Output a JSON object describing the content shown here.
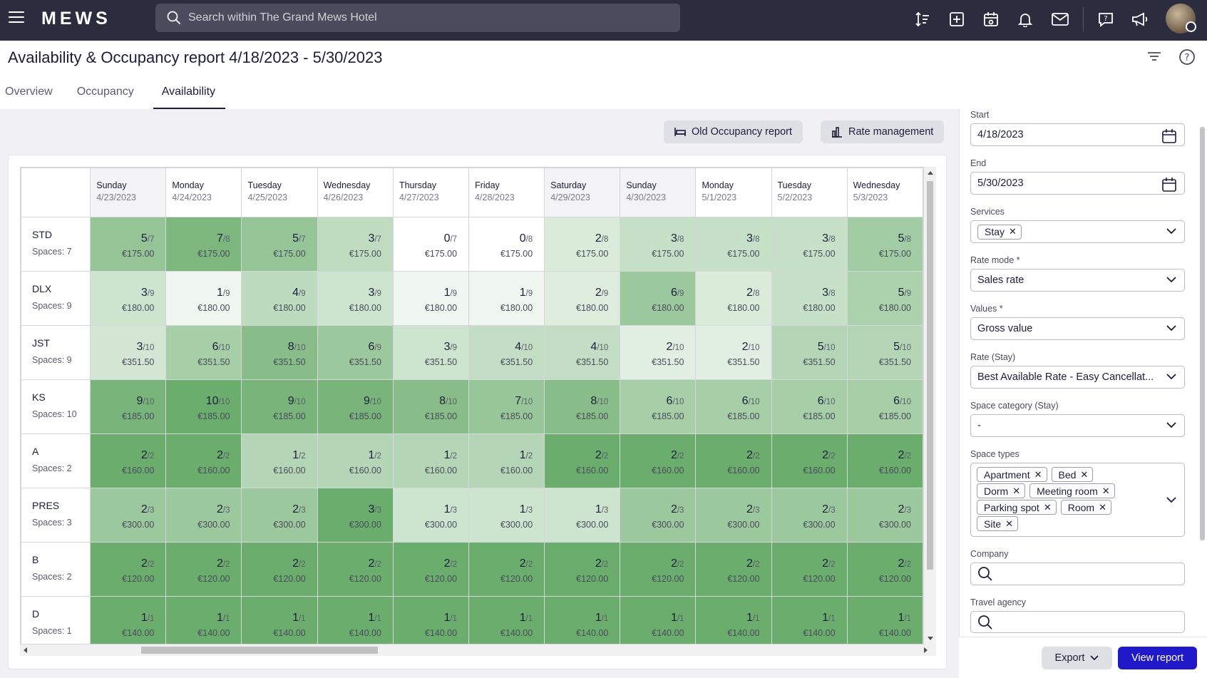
{
  "header": {
    "logo": "MEWS",
    "search_placeholder": "Search within The Grand Mews Hotel",
    "icons": [
      "sort-icon",
      "add-icon",
      "calendar-icon",
      "bell-icon",
      "mail-icon",
      "help-chat-icon",
      "megaphone-icon"
    ]
  },
  "page": {
    "title": "Availability & Occupancy report 4/18/2023 - 5/30/2023",
    "tabs": [
      "Overview",
      "Occupancy",
      "Availability"
    ],
    "active_tab": "Availability"
  },
  "actions": {
    "old_report": "Old Occupancy report",
    "rate_management": "Rate management"
  },
  "grid": {
    "columns": [
      {
        "day": "Sunday",
        "date": "4/23/2023",
        "weekend": true
      },
      {
        "day": "Monday",
        "date": "4/24/2023",
        "weekend": false
      },
      {
        "day": "Tuesday",
        "date": "4/25/2023",
        "weekend": false
      },
      {
        "day": "Wednesday",
        "date": "4/26/2023",
        "weekend": false
      },
      {
        "day": "Thursday",
        "date": "4/27/2023",
        "weekend": false
      },
      {
        "day": "Friday",
        "date": "4/28/2023",
        "weekend": false
      },
      {
        "day": "Saturday",
        "date": "4/29/2023",
        "weekend": true
      },
      {
        "day": "Sunday",
        "date": "4/30/2023",
        "weekend": true
      },
      {
        "day": "Monday",
        "date": "5/1/2023",
        "weekend": false
      },
      {
        "day": "Tuesday",
        "date": "5/2/2023",
        "weekend": false
      },
      {
        "day": "Wednesday",
        "date": "5/3/2023",
        "weekend": false
      }
    ],
    "rows": [
      {
        "code": "STD",
        "spaces": "Spaces: 7",
        "cells": [
          [
            "5",
            "/7",
            "€175.00"
          ],
          [
            "7",
            "/8",
            "€175.00"
          ],
          [
            "5",
            "/7",
            "€175.00"
          ],
          [
            "3",
            "/7",
            "€175.00"
          ],
          [
            "0",
            "/7",
            "€175.00"
          ],
          [
            "0",
            "/8",
            "€175.00"
          ],
          [
            "2",
            "/8",
            "€175.00"
          ],
          [
            "3",
            "/8",
            "€175.00"
          ],
          [
            "3",
            "/8",
            "€175.00"
          ],
          [
            "3",
            "/8",
            "€175.00"
          ],
          [
            "5",
            "/8",
            "€175.00"
          ]
        ]
      },
      {
        "code": "DLX",
        "spaces": "Spaces: 9",
        "cells": [
          [
            "3",
            "/9",
            "€180.00"
          ],
          [
            "1",
            "/9",
            "€180.00"
          ],
          [
            "4",
            "/9",
            "€180.00"
          ],
          [
            "3",
            "/9",
            "€180.00"
          ],
          [
            "1",
            "/9",
            "€180.00"
          ],
          [
            "1",
            "/9",
            "€180.00"
          ],
          [
            "2",
            "/9",
            "€180.00"
          ],
          [
            "6",
            "/9",
            "€180.00"
          ],
          [
            "2",
            "/8",
            "€180.00"
          ],
          [
            "3",
            "/8",
            "€180.00"
          ],
          [
            "5",
            "/9",
            "€180.00"
          ]
        ]
      },
      {
        "code": "JST",
        "spaces": "Spaces: 9",
        "cells": [
          [
            "3",
            "/10",
            "€351.50"
          ],
          [
            "6",
            "/10",
            "€351.50"
          ],
          [
            "8",
            "/10",
            "€351.50"
          ],
          [
            "6",
            "/9",
            "€351.50"
          ],
          [
            "3",
            "/9",
            "€351.50"
          ],
          [
            "4",
            "/10",
            "€351.50"
          ],
          [
            "4",
            "/10",
            "€351.50"
          ],
          [
            "2",
            "/10",
            "€351.50"
          ],
          [
            "2",
            "/10",
            "€351.50"
          ],
          [
            "5",
            "/10",
            "€351.50"
          ],
          [
            "5",
            "/10",
            "€351.50"
          ]
        ]
      },
      {
        "code": "KS",
        "spaces": "Spaces: 10",
        "cells": [
          [
            "9",
            "/10",
            "€185.00"
          ],
          [
            "10",
            "/10",
            "€185.00"
          ],
          [
            "9",
            "/10",
            "€185.00"
          ],
          [
            "9",
            "/10",
            "€185.00"
          ],
          [
            "8",
            "/10",
            "€185.00"
          ],
          [
            "7",
            "/10",
            "€185.00"
          ],
          [
            "8",
            "/10",
            "€185.00"
          ],
          [
            "6",
            "/10",
            "€185.00"
          ],
          [
            "6",
            "/10",
            "€185.00"
          ],
          [
            "6",
            "/10",
            "€185.00"
          ],
          [
            "6",
            "/10",
            "€185.00"
          ]
        ]
      },
      {
        "code": "A",
        "spaces": "Spaces: 2",
        "cells": [
          [
            "2",
            "/2",
            "€160.00"
          ],
          [
            "2",
            "/2",
            "€160.00"
          ],
          [
            "1",
            "/2",
            "€160.00"
          ],
          [
            "1",
            "/2",
            "€160.00"
          ],
          [
            "1",
            "/2",
            "€160.00"
          ],
          [
            "1",
            "/2",
            "€160.00"
          ],
          [
            "2",
            "/2",
            "€160.00"
          ],
          [
            "2",
            "/2",
            "€160.00"
          ],
          [
            "2",
            "/2",
            "€160.00"
          ],
          [
            "2",
            "/2",
            "€160.00"
          ],
          [
            "2",
            "/2",
            "€160.00"
          ]
        ]
      },
      {
        "code": "PRES",
        "spaces": "Spaces: 3",
        "cells": [
          [
            "2",
            "/3",
            "€300.00"
          ],
          [
            "2",
            "/3",
            "€300.00"
          ],
          [
            "2",
            "/3",
            "€300.00"
          ],
          [
            "3",
            "/3",
            "€300.00"
          ],
          [
            "1",
            "/3",
            "€300.00"
          ],
          [
            "1",
            "/3",
            "€300.00"
          ],
          [
            "1",
            "/3",
            "€300.00"
          ],
          [
            "2",
            "/3",
            "€300.00"
          ],
          [
            "2",
            "/3",
            "€300.00"
          ],
          [
            "2",
            "/3",
            "€300.00"
          ],
          [
            "2",
            "/3",
            "€300.00"
          ]
        ]
      },
      {
        "code": "B",
        "spaces": "Spaces: 2",
        "cells": [
          [
            "2",
            "/2",
            "€120.00"
          ],
          [
            "2",
            "/2",
            "€120.00"
          ],
          [
            "2",
            "/2",
            "€120.00"
          ],
          [
            "2",
            "/2",
            "€120.00"
          ],
          [
            "2",
            "/2",
            "€120.00"
          ],
          [
            "2",
            "/2",
            "€120.00"
          ],
          [
            "2",
            "/2",
            "€120.00"
          ],
          [
            "2",
            "/2",
            "€120.00"
          ],
          [
            "2",
            "/2",
            "€120.00"
          ],
          [
            "2",
            "/2",
            "€120.00"
          ],
          [
            "2",
            "/2",
            "€120.00"
          ]
        ]
      },
      {
        "code": "D",
        "spaces": "Spaces: 1",
        "cells": [
          [
            "1",
            "/1",
            "€140.00"
          ],
          [
            "1",
            "/1",
            "€140.00"
          ],
          [
            "1",
            "/1",
            "€140.00"
          ],
          [
            "1",
            "/1",
            "€140.00"
          ],
          [
            "1",
            "/1",
            "€140.00"
          ],
          [
            "1",
            "/1",
            "€140.00"
          ],
          [
            "1",
            "/1",
            "€140.00"
          ],
          [
            "1",
            "/1",
            "€140.00"
          ],
          [
            "1",
            "/1",
            "€140.00"
          ],
          [
            "1",
            "/1",
            "€140.00"
          ],
          [
            "1",
            "/1",
            "€140.00"
          ]
        ]
      }
    ]
  },
  "filters": {
    "start_label": "Start",
    "start_value": "4/18/2023",
    "end_label": "End",
    "end_value": "5/30/2023",
    "services_label": "Services",
    "services_chips": [
      "Stay"
    ],
    "rate_mode_label": "Rate mode *",
    "rate_mode_value": "Sales rate",
    "values_label": "Values *",
    "values_value": "Gross value",
    "rate_label": "Rate (Stay)",
    "rate_value": "Best Available Rate - Easy Cancellat...",
    "space_category_label": "Space category (Stay)",
    "space_category_value": "-",
    "space_types_label": "Space types",
    "space_types_chips": [
      [
        "Apartment",
        "Bed"
      ],
      [
        "Dorm",
        "Meeting room"
      ],
      [
        "Parking spot",
        "Room"
      ],
      [
        "Site"
      ]
    ],
    "company_label": "Company",
    "travel_agency_label": "Travel agency"
  },
  "footer": {
    "export": "Export",
    "view_report": "View report"
  }
}
